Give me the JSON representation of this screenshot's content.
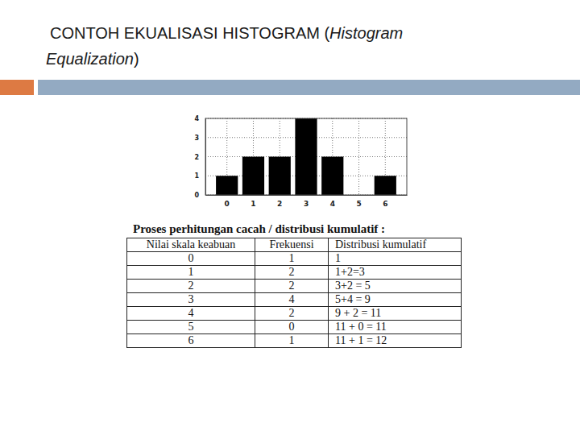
{
  "header": {
    "title": [
      {
        "text": "CONTOH EKUALISASI HISTOGRAM (",
        "italic": false
      },
      {
        "text": "Histogram",
        "italic": true
      },
      {
        "text": "Equalization",
        "italic": true
      },
      {
        "text": ")",
        "italic": false
      }
    ]
  },
  "chart_data": {
    "type": "bar",
    "categories": [
      "0",
      "1",
      "2",
      "3",
      "4",
      "5",
      "6"
    ],
    "values": [
      1,
      2,
      2,
      4,
      2,
      0,
      1
    ],
    "color": "#000000",
    "ylim": [
      0,
      4
    ],
    "yticks": [
      0,
      1,
      2,
      3,
      4
    ],
    "grid": true
  },
  "table": {
    "caption": "Proses perhitungan cacah / distribusi kumulatif :",
    "header": [
      "Nilai skala keabuan",
      "Frekuensi",
      "Distribusi kumulatif"
    ],
    "rows": [
      [
        "0",
        "1",
        "1"
      ],
      [
        "1",
        "2",
        "1+2=3"
      ],
      [
        "2",
        "2",
        "3+2 = 5"
      ],
      [
        "3",
        "4",
        "5+4 = 9"
      ],
      [
        "4",
        "2",
        "9 + 2 = 11"
      ],
      [
        "5",
        "0",
        "11 + 0 = 11"
      ],
      [
        "6",
        "1",
        "11 + 1 = 12"
      ]
    ]
  }
}
